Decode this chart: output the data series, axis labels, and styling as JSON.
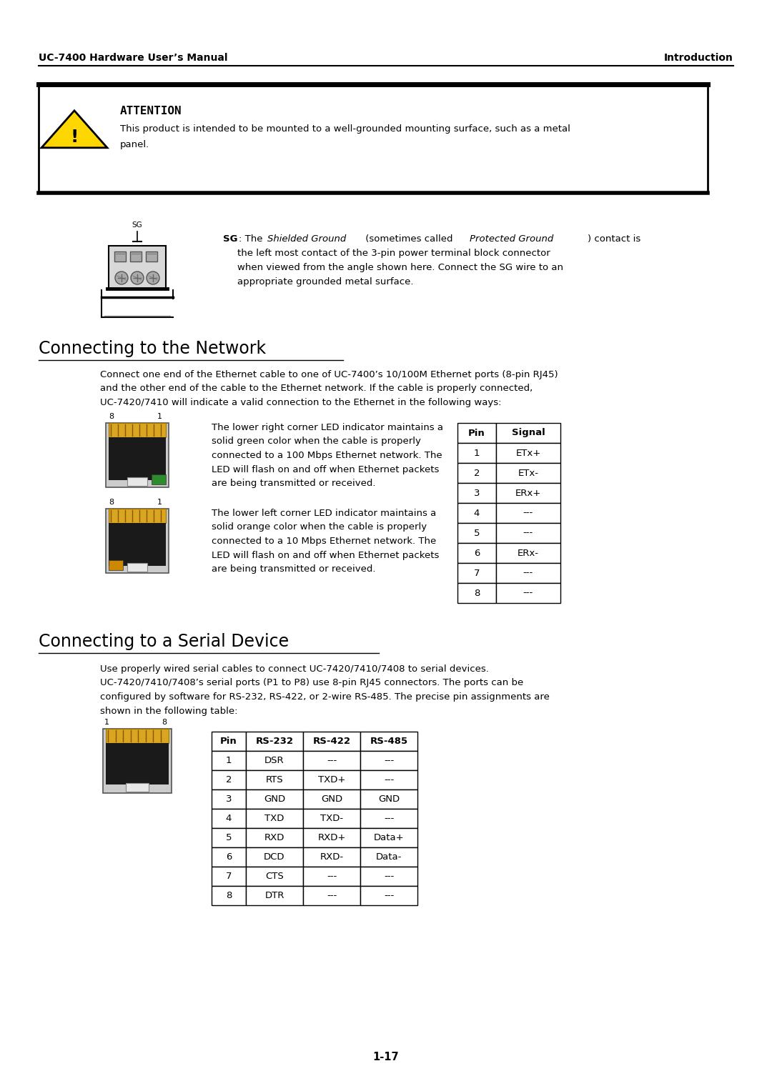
{
  "page_width": 10.8,
  "page_height": 15.27,
  "dpi": 100,
  "bg_color": "#ffffff",
  "header_left": "UC-7400 Hardware User’s Manual",
  "header_right": "Introduction",
  "attention_title": "ATTENTION",
  "attention_text1": "This product is intended to be mounted to a well-grounded mounting surface, such as a metal",
  "attention_text2": "panel.",
  "section1_title": "Connecting to the Network",
  "section1_para": "Connect one end of the Ethernet cable to one of UC-7400’s 10/100M Ethernet ports (8-pin RJ45)\nand the other end of the cable to the Ethernet network. If the cable is properly connected,\nUC-7420/7410 will indicate a valid connection to the Ethernet in the following ways:",
  "rj45_text1": "The lower right corner LED indicator maintains a\nsolid green color when the cable is properly\nconnected to a 100 Mbps Ethernet network. The\nLED will flash on and off when Ethernet packets\nare being transmitted or received.",
  "rj45_text2": "The lower left corner LED indicator maintains a\nsolid orange color when the cable is properly\nconnected to a 10 Mbps Ethernet network. The\nLED will flash on and off when Ethernet packets\nare being transmitted or received.",
  "eth_table_headers": [
    "Pin",
    "Signal"
  ],
  "eth_table_rows": [
    [
      "1",
      "ETx+"
    ],
    [
      "2",
      "ETx-"
    ],
    [
      "3",
      "ERx+"
    ],
    [
      "4",
      "---"
    ],
    [
      "5",
      "---"
    ],
    [
      "6",
      "ERx-"
    ],
    [
      "7",
      "---"
    ],
    [
      "8",
      "---"
    ]
  ],
  "section2_title": "Connecting to a Serial Device",
  "section2_para": "Use properly wired serial cables to connect UC-7420/7410/7408 to serial devices.\nUC-7420/7410/7408’s serial ports (P1 to P8) use 8-pin RJ45 connectors. The ports can be\nconfigured by software for RS-232, RS-422, or 2-wire RS-485. The precise pin assignments are\nshown in the following table:",
  "serial_table_headers": [
    "Pin",
    "RS-232",
    "RS-422",
    "RS-485"
  ],
  "serial_table_rows": [
    [
      "1",
      "DSR",
      "---",
      "---"
    ],
    [
      "2",
      "RTS",
      "TXD+",
      "---"
    ],
    [
      "3",
      "GND",
      "GND",
      "GND"
    ],
    [
      "4",
      "TXD",
      "TXD-",
      "---"
    ],
    [
      "5",
      "RXD",
      "RXD+",
      "Data+"
    ],
    [
      "6",
      "DCD",
      "RXD-",
      "Data-"
    ],
    [
      "7",
      "CTS",
      "---",
      "---"
    ],
    [
      "8",
      "DTR",
      "---",
      "---"
    ]
  ],
  "page_number": "1-17",
  "led_green": "#2d8a2d",
  "led_orange": "#cc8800",
  "warning_yellow": "#FFD700",
  "contacts_gold": "#DAA520"
}
